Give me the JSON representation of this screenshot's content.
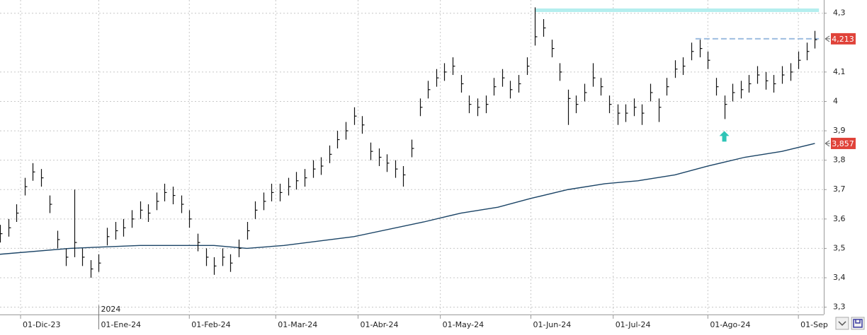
{
  "chart_data": {
    "type": "ohlc",
    "xlim": [
      0,
      200
    ],
    "ylim": [
      3.275,
      4.345
    ],
    "grid": true,
    "xticks": [
      {
        "value": 5,
        "label": "01-Dic-23"
      },
      {
        "value": 24,
        "label": "01-Ene-24"
      },
      {
        "value": 46,
        "label": "01-Feb-24"
      },
      {
        "value": 67,
        "label": "01-Mar-24"
      },
      {
        "value": 87,
        "label": "01-Abr-24"
      },
      {
        "value": 107,
        "label": "01-May-24"
      },
      {
        "value": 129,
        "label": "01-Jun-24"
      },
      {
        "value": 149,
        "label": "01-Jul-24"
      },
      {
        "value": 172,
        "label": "01-Ago-24"
      },
      {
        "value": 194,
        "label": "01-Sep"
      }
    ],
    "year_marker": {
      "value": 24,
      "label": "2024"
    },
    "yticks": [
      {
        "value": 3.3,
        "label": "3,3"
      },
      {
        "value": 3.4,
        "label": "3,4"
      },
      {
        "value": 3.5,
        "label": "3,5"
      },
      {
        "value": 3.6,
        "label": "3,6"
      },
      {
        "value": 3.7,
        "label": "3,7"
      },
      {
        "value": 3.8,
        "label": "3,8"
      },
      {
        "value": 3.9,
        "label": "3,9"
      },
      4,
      {
        "value": 4.1,
        "label": "4,1"
      },
      {
        "value": 4.3,
        "label": "4,3"
      }
    ],
    "series": [
      {
        "color": "#111111",
        "x": [
          0,
          2,
          4,
          6,
          8,
          10,
          12,
          14,
          16,
          18,
          20,
          22,
          24,
          26,
          28,
          30,
          32,
          34,
          36,
          38,
          40,
          42,
          44,
          46,
          48,
          50,
          52,
          54,
          56,
          58,
          60,
          62,
          64,
          66,
          68,
          70,
          72,
          74,
          76,
          78,
          80,
          82,
          84,
          86,
          88,
          90,
          92,
          94,
          96,
          98,
          100,
          102,
          104,
          106,
          108,
          110,
          112,
          114,
          116,
          118,
          120,
          122,
          124,
          126,
          128,
          130,
          132,
          134,
          136,
          138,
          140,
          142,
          144,
          146,
          148,
          150,
          152,
          154,
          156,
          158,
          160,
          162,
          164,
          166,
          168,
          170,
          172,
          174,
          176,
          178,
          180,
          182,
          184,
          186,
          188,
          190,
          192,
          194,
          196,
          198
        ],
        "high": [
          3.58,
          3.6,
          3.65,
          3.74,
          3.79,
          3.77,
          3.68,
          3.56,
          3.5,
          3.7,
          3.5,
          3.46,
          3.48,
          3.57,
          3.59,
          3.6,
          3.63,
          3.66,
          3.65,
          3.69,
          3.72,
          3.71,
          3.68,
          3.63,
          3.55,
          3.5,
          3.47,
          3.5,
          3.48,
          3.53,
          3.59,
          3.66,
          3.69,
          3.72,
          3.72,
          3.74,
          3.76,
          3.77,
          3.8,
          3.81,
          3.85,
          3.9,
          3.93,
          3.98,
          3.95,
          3.86,
          3.84,
          3.82,
          3.8,
          3.78,
          3.87,
          4.01,
          4.07,
          4.11,
          4.13,
          4.15,
          4.09,
          4.02,
          4.01,
          4.02,
          4.08,
          4.11,
          4.07,
          4.09,
          4.15,
          4.32,
          4.28,
          4.21,
          4.13,
          4.04,
          4.02,
          4.06,
          4.13,
          4.08,
          4.02,
          3.99,
          3.99,
          4.01,
          3.99,
          4.06,
          4.01,
          4.08,
          4.14,
          4.15,
          4.2,
          4.21,
          4.17,
          4.08,
          4.02,
          4.06,
          4.07,
          4.09,
          4.12,
          4.1,
          4.09,
          4.12,
          4.13,
          4.17,
          4.2,
          4.24
        ],
        "low": [
          3.52,
          3.54,
          3.59,
          3.68,
          3.73,
          3.71,
          3.62,
          3.5,
          3.44,
          3.47,
          3.44,
          3.4,
          3.42,
          3.51,
          3.53,
          3.54,
          3.57,
          3.6,
          3.59,
          3.63,
          3.66,
          3.65,
          3.62,
          3.57,
          3.49,
          3.44,
          3.41,
          3.44,
          3.42,
          3.47,
          3.53,
          3.6,
          3.63,
          3.66,
          3.66,
          3.68,
          3.7,
          3.71,
          3.74,
          3.75,
          3.79,
          3.84,
          3.87,
          3.92,
          3.89,
          3.8,
          3.78,
          3.76,
          3.74,
          3.71,
          3.81,
          3.95,
          4.01,
          4.05,
          4.07,
          4.09,
          4.03,
          3.96,
          3.95,
          3.96,
          4.02,
          4.05,
          4.01,
          4.03,
          4.09,
          4.19,
          4.22,
          4.15,
          4.07,
          3.92,
          3.96,
          4.0,
          4.05,
          4.02,
          3.96,
          3.92,
          3.93,
          3.95,
          3.92,
          4.0,
          3.93,
          4.02,
          4.08,
          4.09,
          4.14,
          4.15,
          4.11,
          4.02,
          3.94,
          4.0,
          4.01,
          4.03,
          4.06,
          4.04,
          4.03,
          4.06,
          4.07,
          4.11,
          4.14,
          4.18
        ],
        "close": [
          3.55,
          3.57,
          3.62,
          3.71,
          3.76,
          3.74,
          3.65,
          3.53,
          3.47,
          3.52,
          3.47,
          3.43,
          3.45,
          3.54,
          3.56,
          3.57,
          3.6,
          3.63,
          3.62,
          3.66,
          3.69,
          3.68,
          3.65,
          3.6,
          3.52,
          3.47,
          3.44,
          3.47,
          3.45,
          3.5,
          3.56,
          3.63,
          3.66,
          3.69,
          3.69,
          3.71,
          3.73,
          3.74,
          3.77,
          3.78,
          3.82,
          3.87,
          3.9,
          3.95,
          3.92,
          3.83,
          3.81,
          3.79,
          3.77,
          3.75,
          3.84,
          3.98,
          4.04,
          4.08,
          4.1,
          4.12,
          4.06,
          3.99,
          3.98,
          3.99,
          4.05,
          4.08,
          4.04,
          4.06,
          4.12,
          4.22,
          4.25,
          4.18,
          4.1,
          4.01,
          3.99,
          4.03,
          4.08,
          4.05,
          3.99,
          3.96,
          3.96,
          3.98,
          3.96,
          4.03,
          3.98,
          4.05,
          4.11,
          4.12,
          4.17,
          4.18,
          4.14,
          4.05,
          3.99,
          4.03,
          4.04,
          4.06,
          4.09,
          4.07,
          4.06,
          4.09,
          4.1,
          4.14,
          4.17,
          4.21
        ]
      }
    ],
    "moving_average": {
      "color": "#1b4466",
      "x": [
        0,
        17,
        34,
        52,
        60,
        69,
        86,
        103,
        112,
        121,
        129,
        138,
        147,
        155,
        164,
        172,
        181,
        190,
        198
      ],
      "values": [
        3.48,
        3.5,
        3.51,
        3.51,
        3.5,
        3.51,
        3.54,
        3.59,
        3.62,
        3.64,
        3.67,
        3.7,
        3.72,
        3.73,
        3.75,
        3.78,
        3.81,
        3.83,
        3.857
      ]
    },
    "levels": [
      {
        "value": 4.31,
        "xlim": [
          130,
          199
        ],
        "color": "#b4eeee",
        "dashed": false
      },
      {
        "value": 4.213,
        "xlim": [
          169,
          199
        ],
        "color": "#9dbde0",
        "dashed": true
      }
    ],
    "price_tags": [
      {
        "value": 4.213,
        "label": "4,213"
      },
      {
        "value": 3.857,
        "label": "3,857"
      }
    ],
    "arrow": {
      "x": 176,
      "value": 3.88,
      "color": "#2ec4b6"
    }
  }
}
